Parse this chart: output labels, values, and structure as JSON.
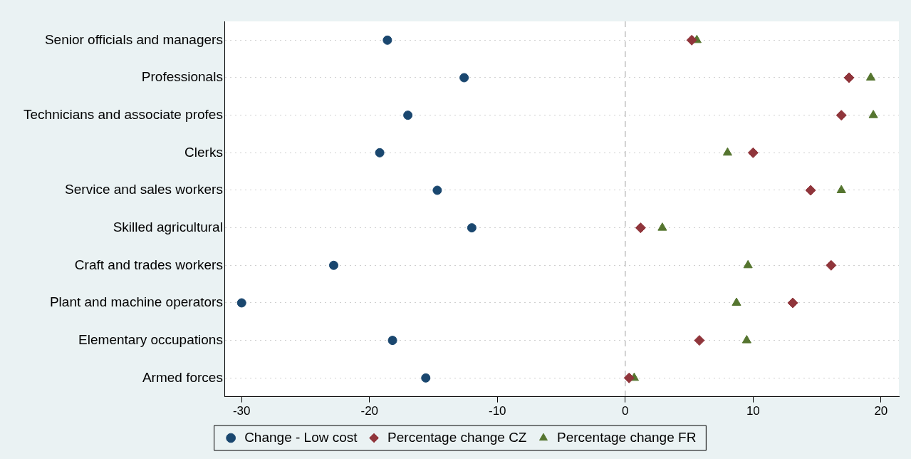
{
  "chart_data": {
    "type": "scatter",
    "categories": [
      "Senior officials and managers",
      "Professionals",
      "Technicians and associate profes",
      "Clerks",
      "Service and sales workers",
      "Skilled agricultural",
      "Craft and trades workers",
      "Plant and machine operators",
      "Elementary occupations",
      "Armed forces"
    ],
    "series": [
      {
        "name": "Change - Low cost",
        "color": "#1a476f",
        "marker": "circle",
        "values": [
          -18.6,
          -12.6,
          -17.0,
          -19.2,
          -14.7,
          -12.0,
          -22.8,
          -30.0,
          -18.2,
          -15.6
        ]
      },
      {
        "name": "Percentage change CZ",
        "color": "#90353b",
        "marker": "diamond",
        "values": [
          5.2,
          17.5,
          16.9,
          10.0,
          14.5,
          1.2,
          16.1,
          13.1,
          5.8,
          0.3
        ]
      },
      {
        "name": "Percentage change FR",
        "color": "#55752f",
        "marker": "triangle",
        "values": [
          5.6,
          19.2,
          19.4,
          8.0,
          16.9,
          2.9,
          9.6,
          8.7,
          9.5,
          0.7
        ]
      }
    ],
    "orientation": "horizontal",
    "xlim": [
      -31.3,
      21.4
    ],
    "xticks": [
      -30,
      -20,
      -10,
      0,
      10,
      20
    ],
    "ref_lines": [
      {
        "axis": "x",
        "value": 0,
        "line_style": "dashed",
        "color": "#c0c0c0"
      }
    ],
    "grid": "y",
    "legend": "bottom"
  }
}
